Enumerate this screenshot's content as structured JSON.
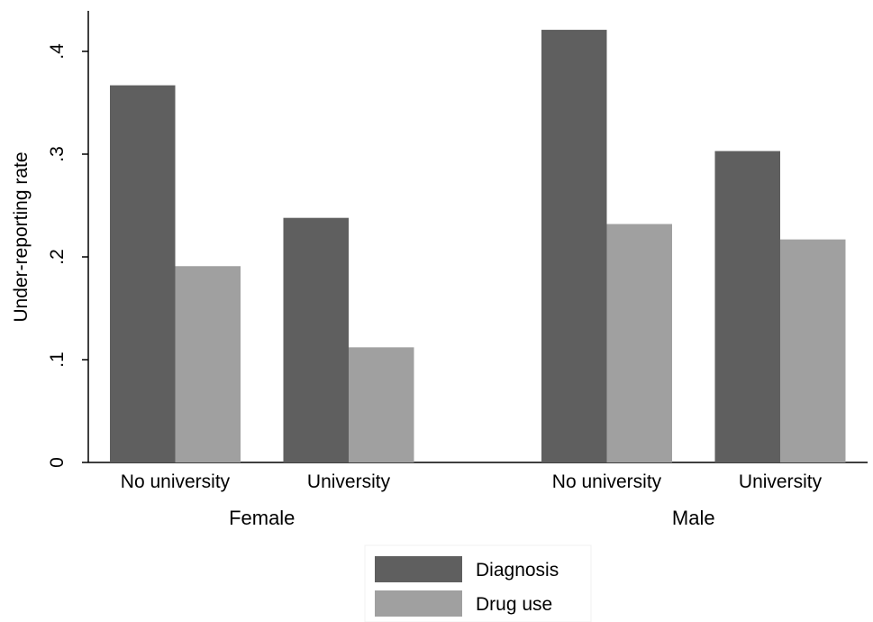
{
  "chart_data": {
    "type": "bar",
    "ylabel": "Under-reporting rate",
    "ylim": [
      0,
      0.45
    ],
    "yticks": [
      {
        "value": 0,
        "label": "0"
      },
      {
        "value": 0.1,
        "label": ".1"
      },
      {
        "value": 0.2,
        "label": ".2"
      },
      {
        "value": 0.3,
        "label": ".3"
      },
      {
        "value": 0.4,
        "label": ".4"
      }
    ],
    "groups": [
      {
        "label": "Female",
        "categories": [
          "No university",
          "University"
        ]
      },
      {
        "label": "Male",
        "categories": [
          "No university",
          "University"
        ]
      }
    ],
    "categories": [
      "Female / No university",
      "Female / University",
      "Male / No university",
      "Male / University"
    ],
    "series": [
      {
        "name": "Diagnosis",
        "color": "#5f5f5f",
        "values": [
          0.367,
          0.238,
          0.421,
          0.303
        ]
      },
      {
        "name": "Drug use",
        "color": "#a0a0a0",
        "values": [
          0.191,
          0.112,
          0.232,
          0.217
        ]
      }
    ],
    "grid": false,
    "legend_position": "bottom-center"
  }
}
